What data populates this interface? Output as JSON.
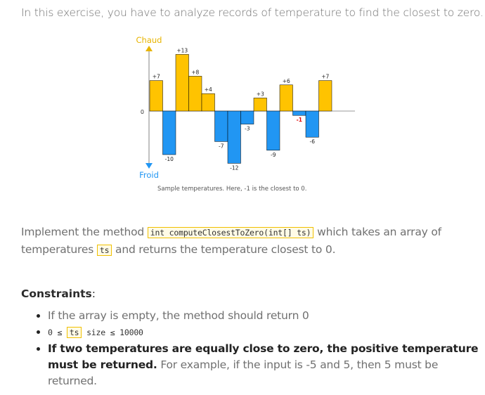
{
  "intro": "In this exercise, you have to analyze records of temperature to find the closest to zero.",
  "chart_data": {
    "type": "bar",
    "values": [
      7,
      -10,
      13,
      8,
      4,
      -7,
      -12,
      -3,
      3,
      -9,
      6,
      -1,
      -6,
      7
    ],
    "labels": [
      "+7",
      "-10",
      "+13",
      "+8",
      "+4",
      "-7",
      "-12",
      "-3",
      "+3",
      "-9",
      "+6",
      "-1",
      "-6",
      "+7"
    ],
    "highlight_index": 11,
    "axis_top_label": "Chaud",
    "axis_bottom_label": "Froid",
    "zero_label": "0",
    "caption": "Sample temperatures. Here, -1 is the closest to 0.",
    "colors": {
      "positive": "#ffc300",
      "negative": "#2196f3",
      "highlight_label": "#e00000",
      "axis": "#999999",
      "bar_edge": "#000000",
      "hot": "#e8b400",
      "cold": "#2196f3"
    }
  },
  "task": {
    "before": "Implement the method ",
    "method": "int computeClosestToZero(int[] ts)",
    "middle": " which takes an array of temperatures ",
    "param": "ts",
    "after": " and returns the temperature closest to 0."
  },
  "constraints": {
    "title": "Constraints",
    "colon": ":",
    "item1": "If the array is empty, the method should return 0",
    "item2_pre": "0 ≤ ",
    "item2_param": "ts",
    "item2_post": " size ≤ 10000",
    "item3_bold": "If two temperatures are equally close to zero, the positive temperature must be returned.",
    "item3_rest": " For example, if the input is -5 and 5, then 5 must be returned."
  }
}
